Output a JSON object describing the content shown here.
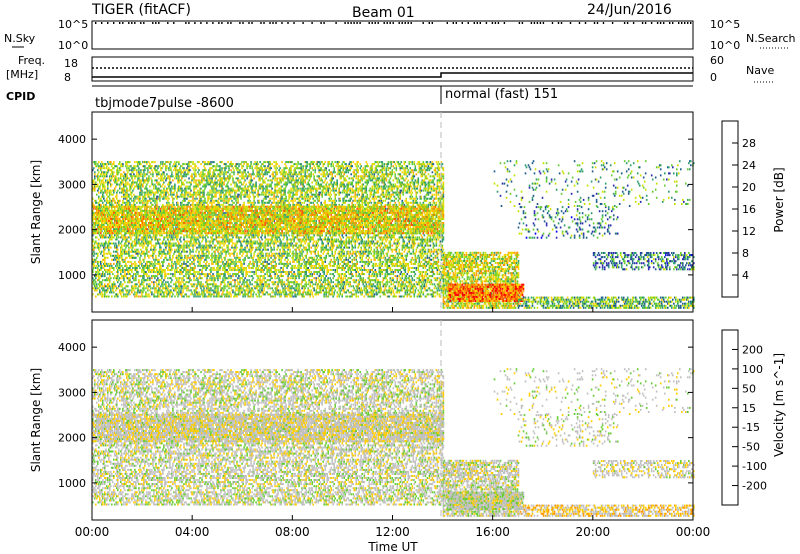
{
  "header": {
    "title": "TIGER (fitACF)",
    "beam": "Beam 01",
    "date": "24/Jun/2016"
  },
  "top_panels": {
    "nsky_label": "N.Sky",
    "nsky_ticks": [
      "10^5",
      "10^0"
    ],
    "nsearch_label": "N.Search",
    "freq_label_1": "Freq.",
    "freq_label_2": "[MHz]",
    "freq_ticks": [
      "18",
      "8"
    ],
    "nave_ticks": [
      "60",
      "0"
    ],
    "nave_label": "Nave",
    "cpid_label": "CPID",
    "cpid_first": "tbjmode7pulse -8600",
    "cpid_second": "normal (fast) 151"
  },
  "axes": {
    "ylabel": "Slant Range [km]",
    "yticks": [
      "4000",
      "3000",
      "2000",
      "1000"
    ],
    "xticks": [
      "00:00",
      "04:00",
      "08:00",
      "12:00",
      "16:00",
      "20:00",
      "00:00"
    ],
    "xlabel": "Time UT"
  },
  "power_scale": {
    "label": "Power [dB]",
    "ticks": [
      "28",
      "24",
      "20",
      "16",
      "12",
      "8",
      "4"
    ],
    "colors": [
      "#ff0000",
      "#ff5500",
      "#ff9900",
      "#ffd000",
      "#c8e000",
      "#66cc33",
      "#2f9e6e",
      "#1f5c8a",
      "#2b2bb0",
      "#0000ff"
    ]
  },
  "velocity_scale": {
    "label": "Velocity [m s^-1]",
    "ticks": [
      "200",
      "100",
      "50",
      "15",
      "-15",
      "-50",
      "-100",
      "-200"
    ],
    "colors": [
      "#2233aa",
      "#2f6fb0",
      "#2f9e6e",
      "#66cc33",
      "#c0c0c0",
      "#c0c0c0",
      "#ffcc00",
      "#ff9900",
      "#ff5500",
      "#ff0000"
    ]
  },
  "chart_data": {
    "type": "heatmap",
    "title": "TIGER (fitACF)",
    "xlabel": "Time UT",
    "ylabel": "Slant Range [km]",
    "xlim": [
      "00:00",
      "24:00"
    ],
    "ylim": [
      180,
      4600
    ],
    "mode_change_time": "14:00",
    "panels": [
      {
        "name": "Power [dB]",
        "range": [
          0,
          32
        ]
      },
      {
        "name": "Velocity [m s^-1]",
        "range": [
          -250,
          250
        ]
      }
    ],
    "regions": [
      {
        "t_start": 0,
        "t_end": 14,
        "range_start": 500,
        "range_end": 3500,
        "power": 16,
        "velocity": 0,
        "density": 0.45
      },
      {
        "t_start": 0,
        "t_end": 14,
        "range_start": 1900,
        "range_end": 2500,
        "power": 20,
        "velocity": -20,
        "density": 0.6
      },
      {
        "t_start": 14,
        "t_end": 17,
        "range_start": 250,
        "range_end": 1500,
        "power": 18,
        "velocity": 0,
        "density": 0.6
      },
      {
        "t_start": 14.2,
        "t_end": 17.2,
        "range_start": 400,
        "range_end": 800,
        "power": 26,
        "velocity": 5,
        "density": 0.8
      },
      {
        "t_start": 17,
        "t_end": 24,
        "range_start": 250,
        "range_end": 500,
        "power": 14,
        "velocity": -60,
        "density": 0.5
      },
      {
        "t_start": 17,
        "t_end": 21,
        "range_start": 1800,
        "range_end": 2500,
        "power": 10,
        "velocity": 0,
        "density": 0.12
      },
      {
        "t_start": 20,
        "t_end": 24,
        "range_start": 1100,
        "range_end": 1500,
        "power": 10,
        "velocity": -20,
        "density": 0.35
      },
      {
        "t_start": 16,
        "t_end": 24,
        "range_start": 2500,
        "range_end": 3500,
        "power": 12,
        "velocity": 0,
        "density": 0.06
      }
    ]
  }
}
